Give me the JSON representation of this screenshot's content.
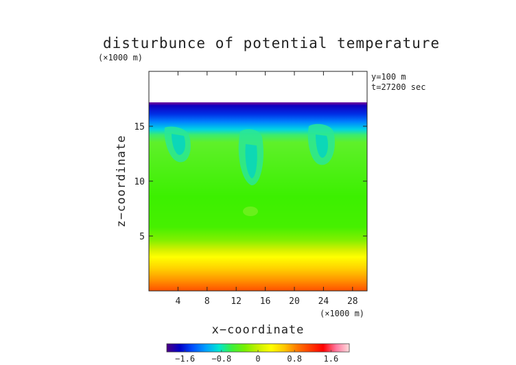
{
  "chart_data": {
    "type": "heatmap",
    "title": "disturbunce of potential temperature",
    "y_unit_label": "(×1000 m)",
    "x_unit_label": "(×1000 m)",
    "xlabel": "x−coordinate",
    "ylabel": "z−coordinate",
    "annotations": [
      "y=100 m",
      "t=27200 sec"
    ],
    "xlim": [
      0,
      30
    ],
    "ylim": [
      0,
      20
    ],
    "x_ticks": [
      4,
      8,
      12,
      16,
      20,
      24,
      28
    ],
    "x_tick_labels": [
      "4",
      "8",
      "12",
      "16",
      "20",
      "24",
      "28"
    ],
    "y_ticks": [
      5,
      10,
      15
    ],
    "y_tick_labels": [
      "5",
      "10",
      "15"
    ],
    "colorbar": {
      "min": -2.0,
      "max": 2.0,
      "ticks": [
        -1.6,
        -0.8,
        0,
        0.8,
        1.6
      ],
      "tick_labels": [
        "−1.6",
        "−0.8",
        "0",
        "0.8",
        "1.6"
      ],
      "colors": [
        "#4b0082",
        "#0000c8",
        "#0050ff",
        "#00a0ff",
        "#00e6d2",
        "#3cf03c",
        "#78f000",
        "#c8f000",
        "#ffff00",
        "#ffc800",
        "#ff7800",
        "#ff3c00",
        "#ff0000",
        "#ff78a0",
        "#ffdcdc"
      ]
    },
    "field_description_values": {
      "domain_top_z": 17.2,
      "surface_value": 1.6,
      "mid_value": 0.1,
      "top_value": -1.6
    }
  }
}
